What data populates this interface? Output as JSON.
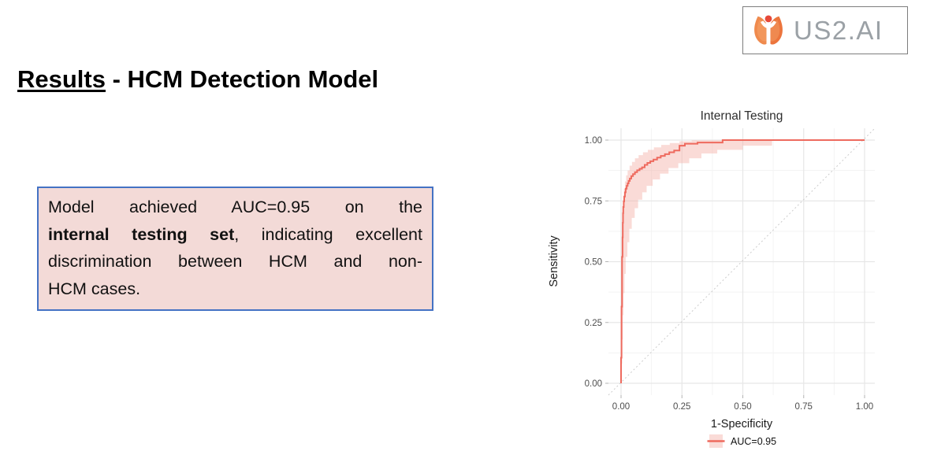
{
  "slide": {
    "logo": {
      "text": "US2.AI",
      "icon": "us2-flower-person-icon"
    },
    "title": {
      "underlined": "Results",
      "rest": " - HCM Detection Model"
    },
    "note_box": {
      "full_text": "Model achieved AUC=0.95 on the internal testing set, indicating excellent discrimination between HCM and non-HCM cases.",
      "lines": [
        {
          "justify": true,
          "segments": [
            {
              "text": "Model achieved AUC=0.95 on the",
              "bold": false
            }
          ]
        },
        {
          "justify": true,
          "segments": [
            {
              "text": "internal testing set",
              "bold": true
            },
            {
              "text": ", indicating excellent",
              "bold": false
            }
          ]
        },
        {
          "justify": true,
          "segments": [
            {
              "text": "discrimination between HCM and non-",
              "bold": false
            }
          ]
        },
        {
          "justify": false,
          "segments": [
            {
              "text": "HCM cases.",
              "bold": false
            }
          ]
        }
      ]
    }
  },
  "colors": {
    "roc_line": "#ee6a5e",
    "roc_band": "#f5b0a7",
    "grid_major": "#e7e7e7",
    "grid_minor": "#f3f3f3",
    "diagonal": "#cccccc",
    "tick_mark": "#b3b3b3",
    "note_fill": "#f3dad7",
    "note_border": "#4472c4",
    "logo_text": "#9ba1a6"
  },
  "chart_data": {
    "type": "line",
    "subtype": "roc-step-curve",
    "title": "Internal Testing",
    "xlabel": "1-Specificity",
    "ylabel": "Sensitivity",
    "xlim": [
      -0.05,
      1.05
    ],
    "ylim": [
      -0.05,
      1.05
    ],
    "grid": true,
    "diagonal_reference": true,
    "x_ticks": [
      0,
      0.25,
      0.5,
      0.75,
      1.0
    ],
    "y_ticks": [
      0,
      0.25,
      0.5,
      0.75,
      1.0
    ],
    "x_tick_labels": [
      "0.00",
      "0.25",
      "0.50",
      "0.75",
      "1.00"
    ],
    "y_tick_labels": [
      "0.00",
      "0.25",
      "0.50",
      "0.75",
      "1.00"
    ],
    "minor_ticks": [
      0.125,
      0.375,
      0.625,
      0.875
    ],
    "legend": {
      "label": "AUC=0.95",
      "position": "bottom"
    },
    "auc": 0.95,
    "series": [
      {
        "name": "ROC curve (internal testing)",
        "points": [
          [
            0.0,
            0.0
          ],
          [
            0.002,
            0.105
          ],
          [
            0.002,
            0.21
          ],
          [
            0.004,
            0.315
          ],
          [
            0.004,
            0.42
          ],
          [
            0.006,
            0.52
          ],
          [
            0.007,
            0.6
          ],
          [
            0.008,
            0.66
          ],
          [
            0.009,
            0.7
          ],
          [
            0.011,
            0.725
          ],
          [
            0.013,
            0.748
          ],
          [
            0.016,
            0.768
          ],
          [
            0.019,
            0.785
          ],
          [
            0.023,
            0.8
          ],
          [
            0.027,
            0.812
          ],
          [
            0.031,
            0.822
          ],
          [
            0.036,
            0.832
          ],
          [
            0.042,
            0.842
          ],
          [
            0.049,
            0.852
          ],
          [
            0.057,
            0.86
          ],
          [
            0.066,
            0.868
          ],
          [
            0.076,
            0.876
          ],
          [
            0.086,
            0.882
          ],
          [
            0.097,
            0.888
          ],
          [
            0.108,
            0.898
          ],
          [
            0.12,
            0.906
          ],
          [
            0.133,
            0.913
          ],
          [
            0.148,
            0.92
          ],
          [
            0.163,
            0.928
          ],
          [
            0.18,
            0.935
          ],
          [
            0.198,
            0.942
          ],
          [
            0.218,
            0.95
          ],
          [
            0.24,
            0.957
          ],
          [
            0.262,
            0.977
          ],
          [
            0.314,
            0.985
          ],
          [
            0.417,
            0.99
          ],
          [
            0.605,
            1.0
          ],
          [
            1.0,
            1.0
          ]
        ]
      }
    ],
    "band": {
      "upper": [
        [
          0.0,
          0.0
        ],
        [
          0.002,
          0.3
        ],
        [
          0.004,
          0.5
        ],
        [
          0.006,
          0.62
        ],
        [
          0.009,
          0.7
        ],
        [
          0.012,
          0.755
        ],
        [
          0.016,
          0.8
        ],
        [
          0.021,
          0.83
        ],
        [
          0.027,
          0.855
        ],
        [
          0.035,
          0.875
        ],
        [
          0.045,
          0.895
        ],
        [
          0.057,
          0.91
        ],
        [
          0.072,
          0.925
        ],
        [
          0.09,
          0.938
        ],
        [
          0.11,
          0.95
        ],
        [
          0.135,
          0.96
        ],
        [
          0.165,
          0.97
        ],
        [
          0.2,
          0.98
        ],
        [
          0.24,
          0.988
        ],
        [
          0.29,
          0.995
        ],
        [
          0.33,
          0.999
        ],
        [
          0.62,
          0.999
        ]
      ],
      "lower": [
        [
          0.0,
          0.0
        ],
        [
          0.003,
          0.08
        ],
        [
          0.005,
          0.18
        ],
        [
          0.007,
          0.28
        ],
        [
          0.01,
          0.37
        ],
        [
          0.014,
          0.45
        ],
        [
          0.019,
          0.52
        ],
        [
          0.026,
          0.58
        ],
        [
          0.034,
          0.635
        ],
        [
          0.044,
          0.68
        ],
        [
          0.056,
          0.72
        ],
        [
          0.07,
          0.755
        ],
        [
          0.087,
          0.785
        ],
        [
          0.105,
          0.812
        ],
        [
          0.13,
          0.838
        ],
        [
          0.16,
          0.862
        ],
        [
          0.195,
          0.885
        ],
        [
          0.235,
          0.905
        ],
        [
          0.28,
          0.925
        ],
        [
          0.33,
          0.945
        ],
        [
          0.395,
          0.96
        ],
        [
          0.5,
          0.977
        ],
        [
          0.62,
          0.999
        ]
      ]
    }
  }
}
